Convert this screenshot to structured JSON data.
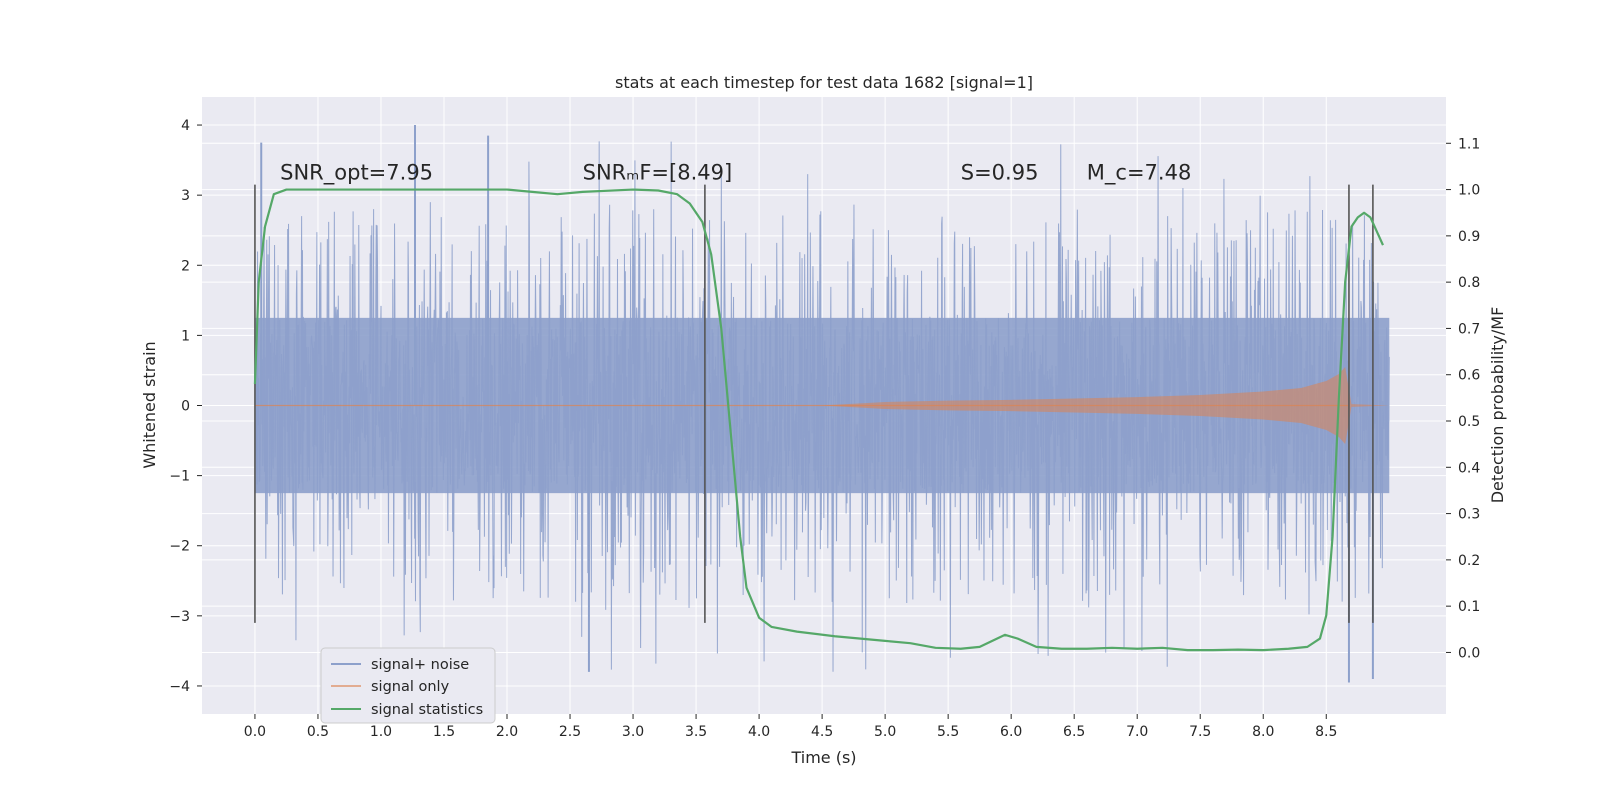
{
  "chart_data": {
    "type": "line",
    "title": "stats at each timestep for test data 1682 [signal=1]",
    "xlabel": "Time (s)",
    "ylabel": "Whitened strain",
    "y2label": "Detection probability/MF",
    "xlim": [
      -0.42,
      9.45
    ],
    "ylim": [
      -4.4,
      4.4
    ],
    "y2lim": [
      -0.133,
      1.2
    ],
    "xticks": [
      0.0,
      0.5,
      1.0,
      1.5,
      2.0,
      2.5,
      3.0,
      3.5,
      4.0,
      4.5,
      5.0,
      5.5,
      6.0,
      6.5,
      7.0,
      7.5,
      8.0,
      8.5
    ],
    "xtick_labels": [
      "0.0",
      "0.5",
      "1.0",
      "1.5",
      "2.0",
      "2.5",
      "3.0",
      "3.5",
      "4.0",
      "4.5",
      "5.0",
      "5.5",
      "6.0",
      "6.5",
      "7.0",
      "7.5",
      "8.0",
      "8.5"
    ],
    "yticks": [
      4,
      3,
      2,
      1,
      0,
      -1,
      -2,
      -3,
      -4
    ],
    "ytick_labels": [
      "4",
      "3",
      "2",
      "1",
      "0",
      "−1",
      "−2",
      "−3",
      "−4"
    ],
    "y2ticks": [
      1.1,
      1.0,
      0.9,
      0.8,
      0.7,
      0.6,
      0.5,
      0.4,
      0.3,
      0.2,
      0.1,
      0.0
    ],
    "y2tick_labels": [
      "1.1",
      "1.0",
      "0.9",
      "0.8",
      "0.7",
      "0.6",
      "0.5",
      "0.4",
      "0.3",
      "0.2",
      "0.1",
      "0.0"
    ],
    "grid": true,
    "legend_position": "bottom-left",
    "series": [
      {
        "name": "signal+ noise",
        "color": "#8da0cb",
        "axis": "left",
        "duration": 9.0,
        "envelope": {
          "x": [
            0.0,
            9.0
          ],
          "core": [
            1.25,
            1.25
          ],
          "peak_typical": [
            2.6,
            2.6
          ],
          "extremes": [
            4.0,
            -3.95
          ]
        }
      },
      {
        "name": "signal only",
        "color": "#dd8452",
        "axis": "left",
        "x": [
          0.0,
          4.5,
          5.0,
          5.5,
          6.0,
          6.5,
          7.0,
          7.5,
          8.0,
          8.3,
          8.5,
          8.6,
          8.65,
          8.7,
          9.0
        ],
        "amplitude": [
          0.0,
          0.0,
          0.05,
          0.07,
          0.08,
          0.1,
          0.12,
          0.15,
          0.2,
          0.25,
          0.35,
          0.45,
          0.55,
          0.02,
          0.0
        ]
      },
      {
        "name": "signal statistics",
        "color": "#55a868",
        "axis": "right",
        "x": [
          0.0,
          0.03,
          0.08,
          0.15,
          0.25,
          0.5,
          1.0,
          1.5,
          2.0,
          2.2,
          2.4,
          2.6,
          3.0,
          3.2,
          3.35,
          3.45,
          3.55,
          3.62,
          3.7,
          3.75,
          3.8,
          3.85,
          3.9,
          4.0,
          4.1,
          4.3,
          4.6,
          5.0,
          5.2,
          5.4,
          5.6,
          5.75,
          5.85,
          5.95,
          6.05,
          6.2,
          6.4,
          6.6,
          6.8,
          7.0,
          7.2,
          7.4,
          7.6,
          7.8,
          8.0,
          8.2,
          8.35,
          8.45,
          8.5,
          8.55,
          8.6,
          8.65,
          8.7,
          8.75,
          8.8,
          8.85,
          8.9,
          8.95
        ],
        "y": [
          0.58,
          0.8,
          0.92,
          0.99,
          1.0,
          1.0,
          1.0,
          1.0,
          1.0,
          0.995,
          0.99,
          0.995,
          1.0,
          0.998,
          0.99,
          0.97,
          0.93,
          0.86,
          0.7,
          0.55,
          0.4,
          0.25,
          0.14,
          0.075,
          0.055,
          0.045,
          0.035,
          0.025,
          0.02,
          0.01,
          0.008,
          0.012,
          0.025,
          0.038,
          0.03,
          0.012,
          0.008,
          0.008,
          0.01,
          0.008,
          0.01,
          0.005,
          0.005,
          0.006,
          0.005,
          0.008,
          0.012,
          0.03,
          0.08,
          0.25,
          0.55,
          0.8,
          0.92,
          0.94,
          0.95,
          0.94,
          0.91,
          0.88
        ]
      }
    ],
    "vertical_markers": [
      {
        "x": 0.0,
        "y_top": 3.15,
        "y_bottom": -3.1
      },
      {
        "x": 3.57,
        "y_top": 3.15,
        "y_bottom": -3.1
      },
      {
        "x": 8.68,
        "y_top": 3.15,
        "y_bottom": -3.1
      },
      {
        "x": 8.87,
        "y_top": 3.15,
        "y_bottom": -3.1
      }
    ],
    "annotations": [
      {
        "name": "snr-opt",
        "text": "SNR_opt=7.95",
        "x": 0.2,
        "y": 3.22
      },
      {
        "name": "snr-mf",
        "text": "SNRₘF=[8.49]",
        "x": 2.6,
        "y": 3.22
      },
      {
        "name": "s-value",
        "text": "S=0.95",
        "x": 5.6,
        "y": 3.22
      },
      {
        "name": "mc-value",
        "text": "M_c=7.48",
        "x": 6.6,
        "y": 3.22
      }
    ]
  }
}
